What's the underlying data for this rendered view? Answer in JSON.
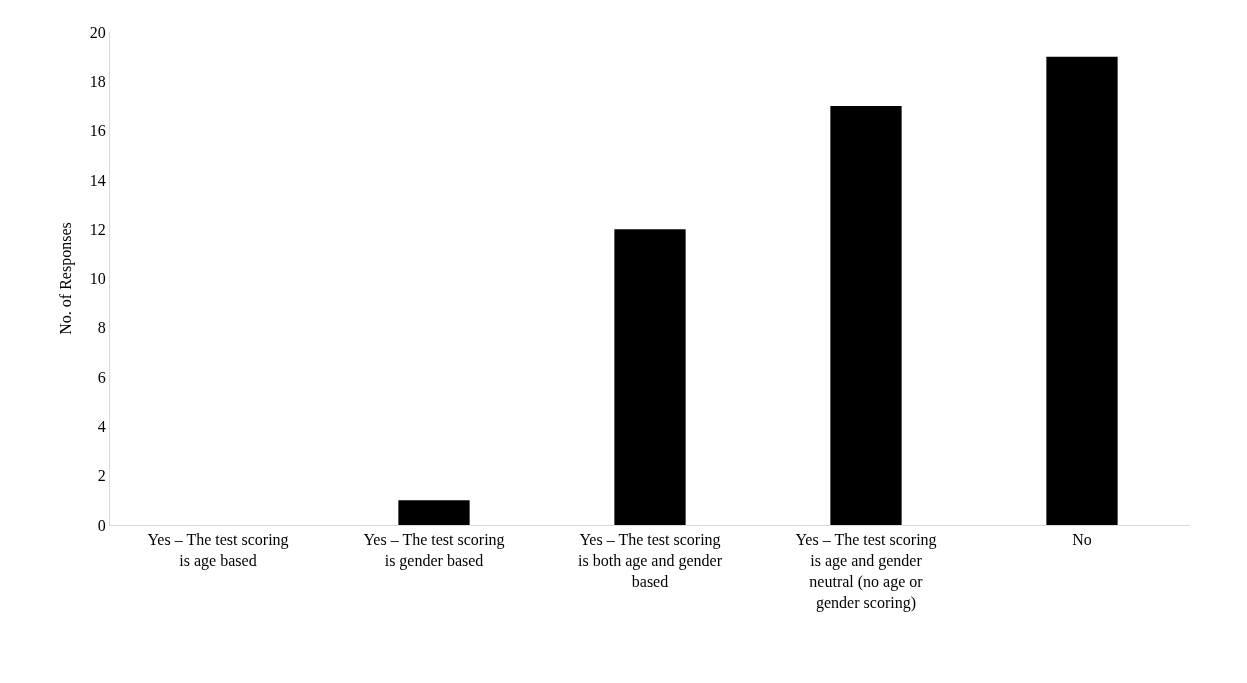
{
  "chart_data": {
    "type": "bar",
    "ylabel": "No. of Responses",
    "categories": [
      "Yes – The test scoring is age based",
      "Yes – The test scoring is gender based",
      "Yes – The test scoring is both age and gender based",
      "Yes – The test scoring is age and gender neutral (no age or gender scoring)",
      "No"
    ],
    "values": [
      0,
      1,
      12,
      17,
      19
    ],
    "color": "#000000",
    "ylim": [
      0,
      20
    ],
    "yticks": [
      0,
      2,
      4,
      6,
      8,
      10,
      12,
      14,
      16,
      18,
      20
    ],
    "grid": false
  }
}
